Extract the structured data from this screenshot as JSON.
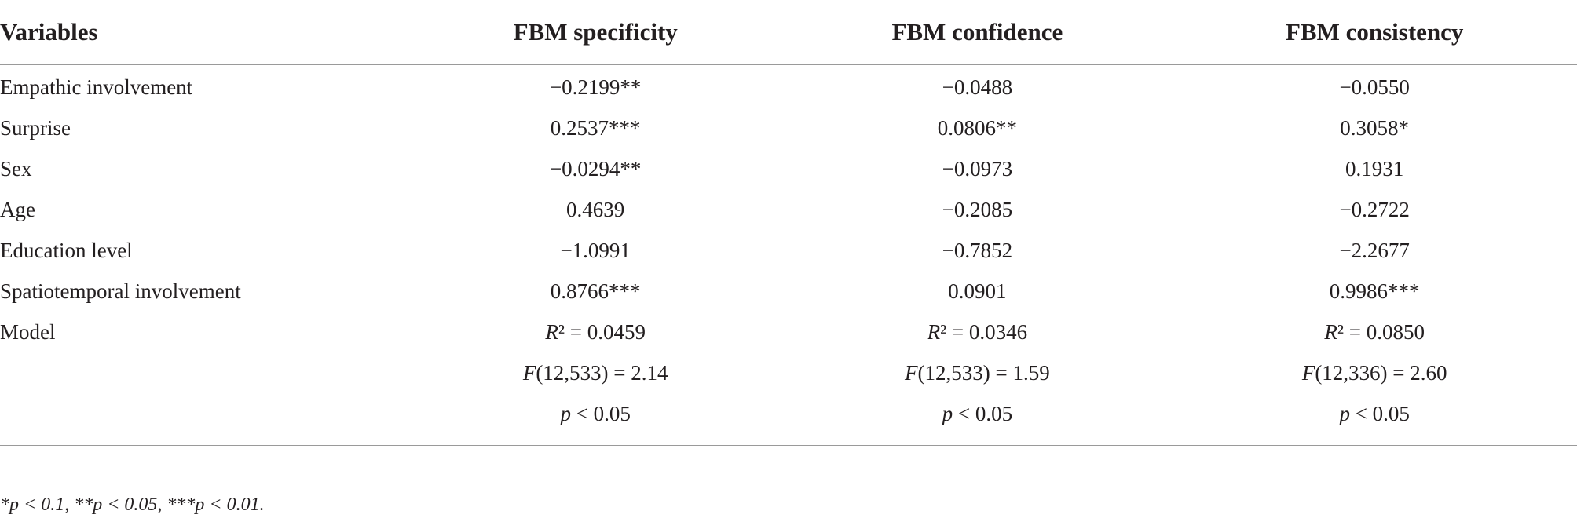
{
  "table": {
    "header": [
      "Variables",
      "FBM specificity",
      "FBM confidence",
      "FBM consistency"
    ],
    "rows": [
      [
        "Empathic involvement",
        "−0.2199**",
        "−0.0488",
        "−0.0550"
      ],
      [
        "Surprise",
        "0.2537***",
        "0.0806**",
        "0.3058*"
      ],
      [
        "Sex",
        "−0.0294**",
        "−0.0973",
        "0.1931"
      ],
      [
        "Age",
        "0.4639",
        "−0.2085",
        "−0.2722"
      ],
      [
        "Education level",
        "−1.0991",
        "−0.7852",
        "−2.2677"
      ],
      [
        "Spatiotemporal involvement",
        "0.8766***",
        "0.0901",
        "0.9986***"
      ],
      [
        "Model",
        "R² = 0.0459",
        "R² = 0.0346",
        "R² = 0.0850"
      ],
      [
        null,
        "F(12,533) = 2.14",
        "F(12,533) = 1.59",
        "F(12,336) = 2.60"
      ],
      [
        null,
        "p < 0.05",
        "p < 0.05",
        "p < 0.05"
      ]
    ]
  },
  "footnote": "*p < 0.1, **p < 0.05, ***p < 0.01."
}
